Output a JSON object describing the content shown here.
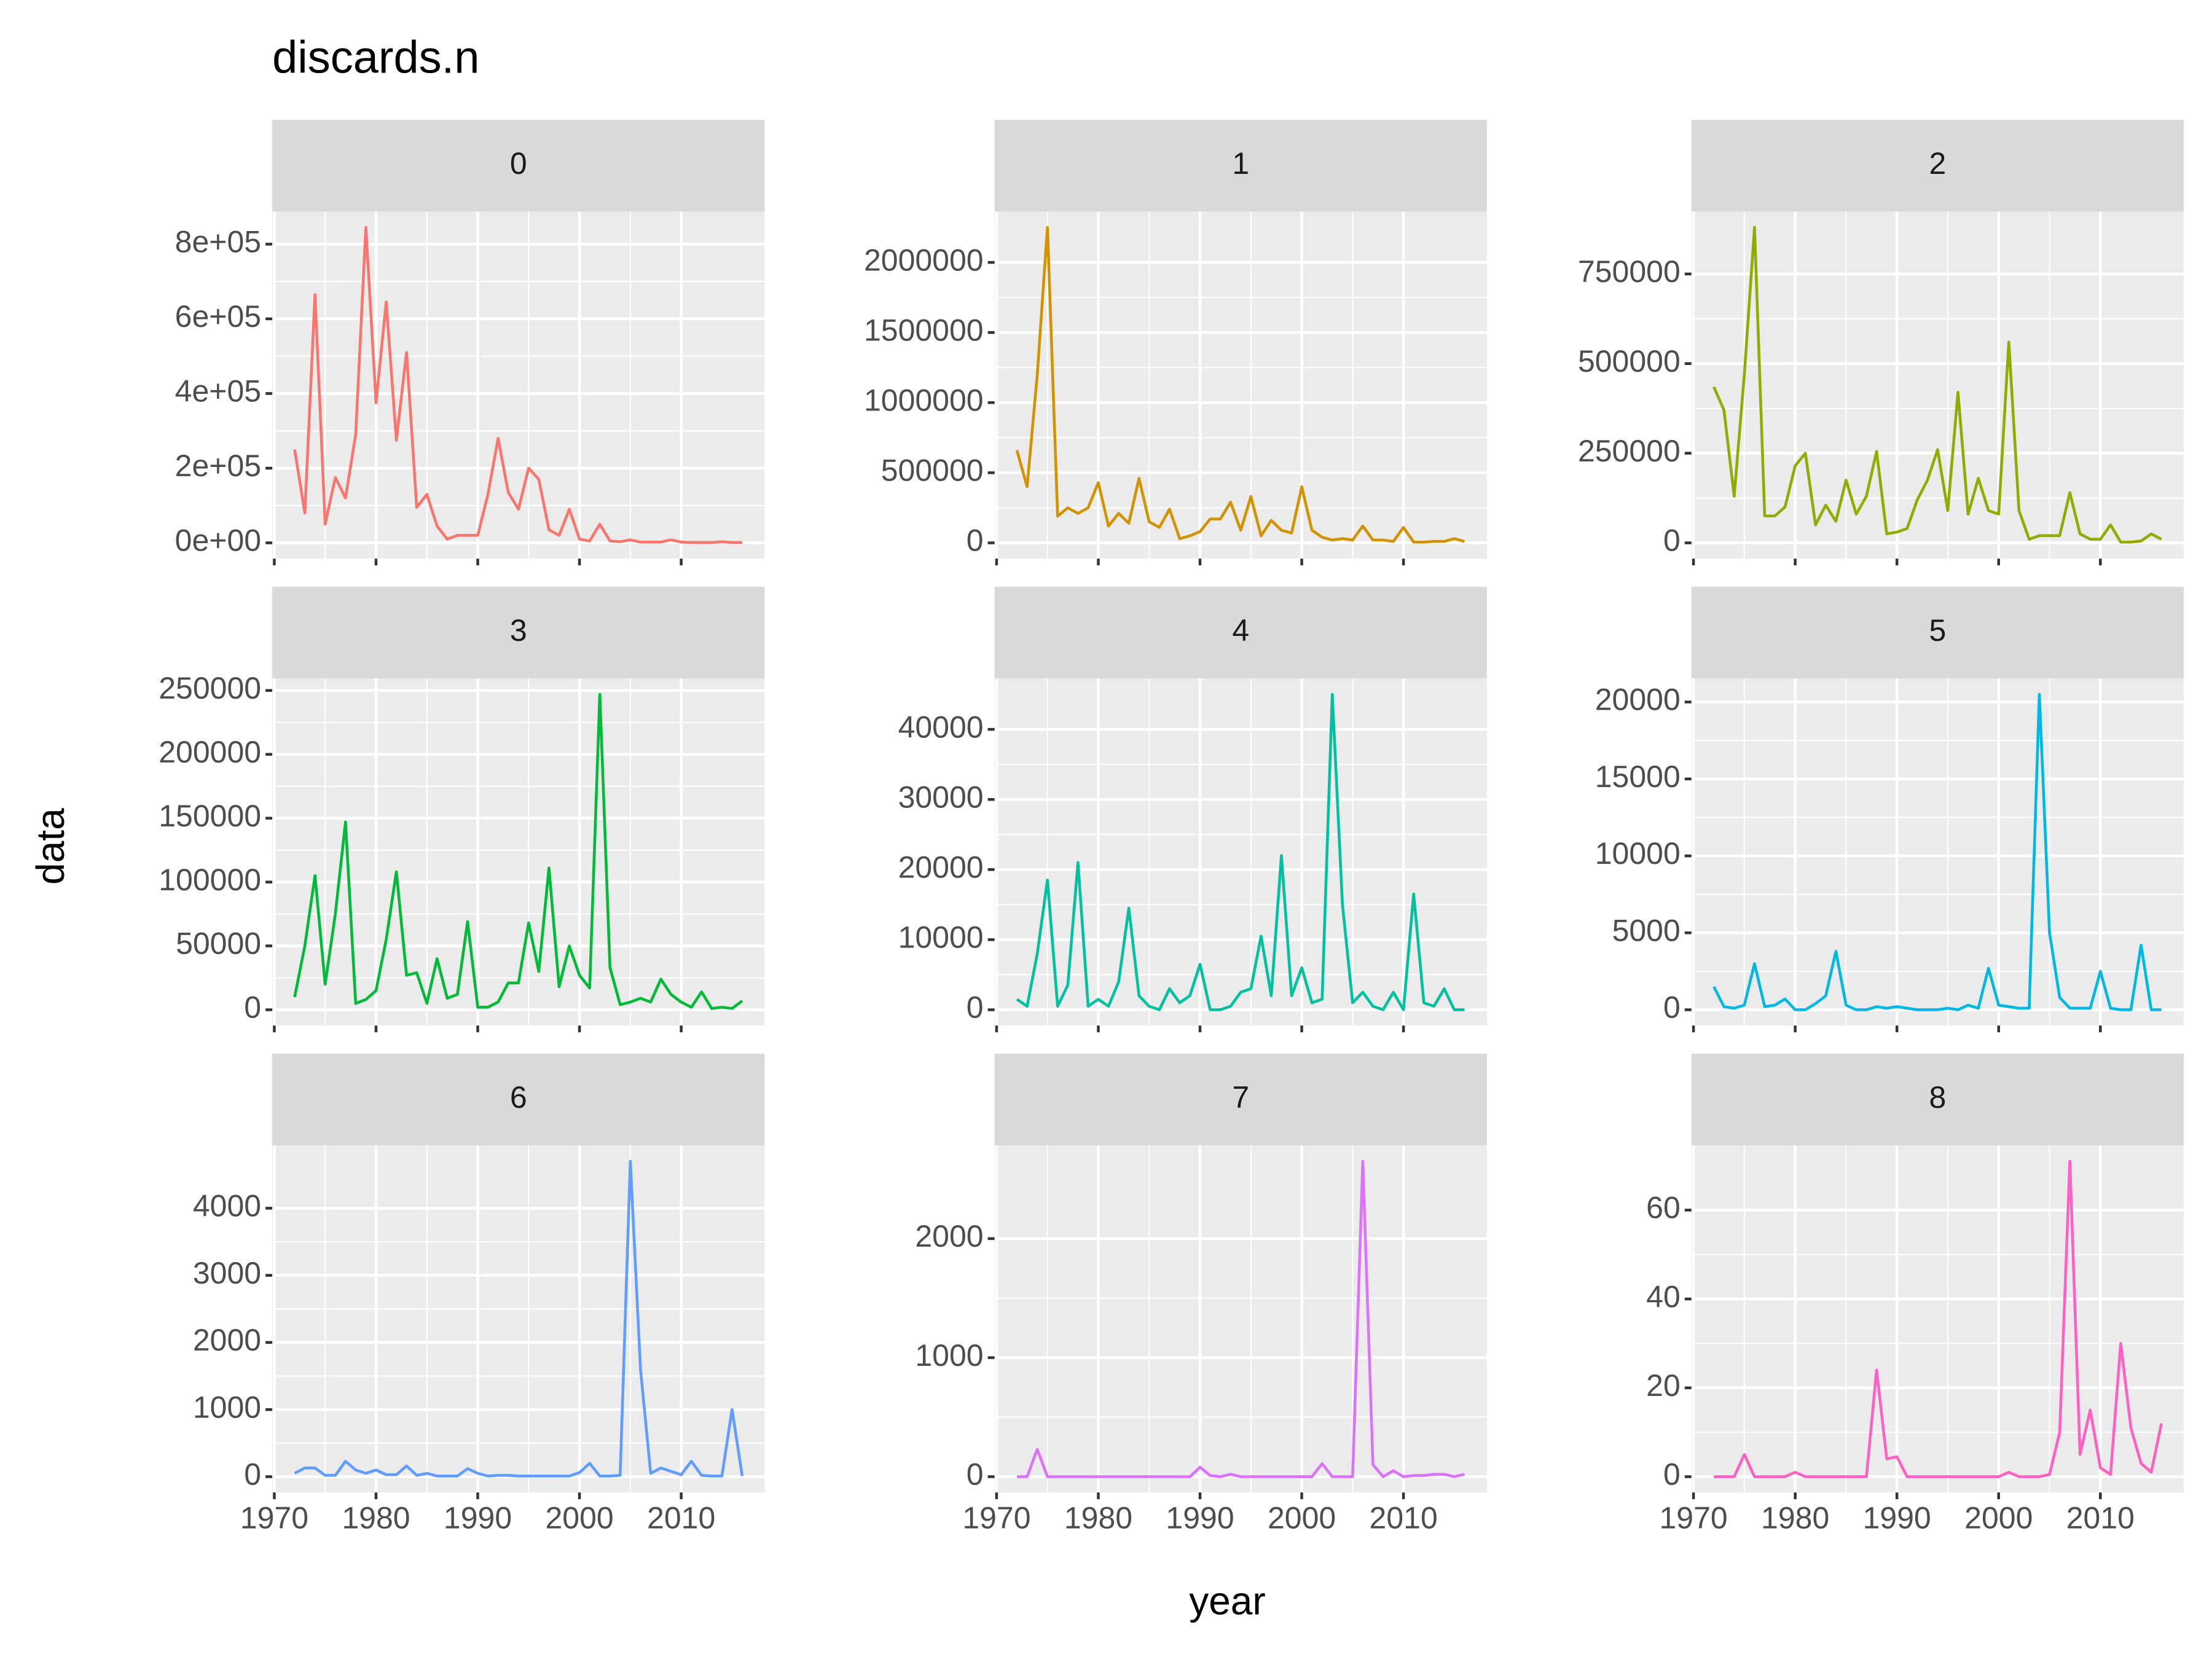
{
  "chart_data": {
    "type": "line",
    "title": "discards.n",
    "xlabel": "year",
    "ylabel": "data",
    "x": [
      1972,
      1973,
      1974,
      1975,
      1976,
      1977,
      1978,
      1979,
      1980,
      1981,
      1982,
      1983,
      1984,
      1985,
      1986,
      1987,
      1988,
      1989,
      1990,
      1991,
      1992,
      1993,
      1994,
      1995,
      1996,
      1997,
      1998,
      1999,
      2000,
      2001,
      2002,
      2003,
      2004,
      2005,
      2006,
      2007,
      2008,
      2009,
      2010,
      2011,
      2012,
      2013,
      2014,
      2015,
      2016
    ],
    "xlim": [
      1969.8,
      2018.2
    ],
    "xticks": [
      1970,
      1980,
      1990,
      2000,
      2010
    ],
    "grid": true,
    "series": [
      {
        "name": "0",
        "color": "#F8766D",
        "ylim": [
          -42250,
          887250
        ],
        "yticks": [
          {
            "value": 0,
            "label": "0e+00"
          },
          {
            "value": 200000,
            "label": "2e+05"
          },
          {
            "value": 400000,
            "label": "4e+05"
          },
          {
            "value": 600000,
            "label": "6e+05"
          },
          {
            "value": 800000,
            "label": "8e+05"
          }
        ],
        "values": [
          250000,
          80000,
          665000,
          50000,
          175000,
          120000,
          290000,
          845000,
          375000,
          645000,
          275000,
          510000,
          95000,
          130000,
          45000,
          10000,
          20000,
          20000,
          20000,
          130000,
          280000,
          135000,
          90000,
          200000,
          170000,
          35000,
          20000,
          90000,
          10000,
          5000,
          50000,
          5000,
          3000,
          8000,
          2000,
          2000,
          2000,
          8000,
          2000,
          1000,
          1000,
          1000,
          3000,
          1000,
          1000
        ]
      },
      {
        "name": "1",
        "color": "#D39200",
        "ylim": [
          -112500,
          2362500
        ],
        "yticks": [
          0,
          500000,
          1000000,
          1500000,
          2000000
        ],
        "values": [
          660000,
          400000,
          1200000,
          2250000,
          190000,
          250000,
          210000,
          250000,
          430000,
          120000,
          210000,
          140000,
          460000,
          150000,
          110000,
          240000,
          30000,
          50000,
          80000,
          170000,
          170000,
          290000,
          90000,
          330000,
          50000,
          160000,
          90000,
          70000,
          400000,
          90000,
          40000,
          20000,
          30000,
          20000,
          120000,
          20000,
          20000,
          10000,
          110000,
          5000,
          5000,
          10000,
          10000,
          30000,
          10000
        ]
      },
      {
        "name": "2",
        "color": "#93AA00",
        "ylim": [
          -44000,
          924000
        ],
        "yticks": [
          0,
          250000,
          500000,
          750000
        ],
        "values": [
          435000,
          370000,
          130000,
          470000,
          880000,
          75000,
          75000,
          100000,
          215000,
          250000,
          50000,
          105000,
          60000,
          175000,
          80000,
          130000,
          255000,
          25000,
          30000,
          40000,
          120000,
          175000,
          260000,
          90000,
          420000,
          80000,
          180000,
          90000,
          80000,
          560000,
          90000,
          10000,
          20000,
          20000,
          20000,
          140000,
          25000,
          10000,
          10000,
          50000,
          2000,
          2000,
          5000,
          25000,
          10000
        ]
      },
      {
        "name": "3",
        "color": "#00BA38",
        "ylim": [
          -12350,
          259350
        ],
        "yticks": [
          0,
          50000,
          100000,
          150000,
          200000,
          250000
        ],
        "values": [
          10000,
          50000,
          105000,
          20000,
          75000,
          147000,
          5000,
          8000,
          15000,
          55000,
          108000,
          27000,
          29000,
          5000,
          40000,
          9000,
          12000,
          69000,
          2000,
          2000,
          6000,
          21000,
          21000,
          68000,
          30000,
          111000,
          18000,
          50000,
          27000,
          17000,
          247000,
          33000,
          4000,
          6000,
          9000,
          6000,
          24000,
          12000,
          6000,
          2000,
          14000,
          1000,
          2000,
          1000,
          7000
        ]
      },
      {
        "name": "4",
        "color": "#00C19F",
        "ylim": [
          -2250,
          47250
        ],
        "yticks": [
          0,
          10000,
          20000,
          30000,
          40000
        ],
        "values": [
          1500,
          500,
          8000,
          18500,
          500,
          3500,
          21000,
          500,
          1500,
          500,
          4000,
          14500,
          2000,
          500,
          0,
          3000,
          1000,
          2000,
          6500,
          0,
          0,
          500,
          2500,
          3000,
          10500,
          2000,
          22000,
          2000,
          6000,
          1000,
          1500,
          45000,
          15000,
          1000,
          2500,
          500,
          0,
          2500,
          0,
          16500,
          1000,
          500,
          3000,
          0,
          0
        ]
      },
      {
        "name": "5",
        "color": "#00B9E3",
        "ylim": [
          -1025,
          21525
        ],
        "yticks": [
          0,
          5000,
          10000,
          15000,
          20000
        ],
        "values": [
          1500,
          200,
          100,
          300,
          3000,
          200,
          300,
          700,
          0,
          0,
          400,
          900,
          3800,
          300,
          0,
          0,
          200,
          100,
          200,
          100,
          0,
          0,
          0,
          100,
          0,
          300,
          100,
          2700,
          300,
          200,
          100,
          100,
          20500,
          5000,
          800,
          100,
          100,
          100,
          2500,
          100,
          0,
          0,
          4200,
          0,
          0
        ]
      },
      {
        "name": "6",
        "color": "#619CFF",
        "ylim": [
          -235,
          4935
        ],
        "yticks": [
          0,
          1000,
          2000,
          3000,
          4000
        ],
        "values": [
          50,
          130,
          130,
          20,
          20,
          230,
          100,
          50,
          100,
          30,
          30,
          160,
          20,
          50,
          10,
          10,
          10,
          120,
          50,
          10,
          20,
          20,
          10,
          10,
          10,
          10,
          10,
          10,
          60,
          200,
          10,
          10,
          20,
          4700,
          1600,
          50,
          130,
          80,
          30,
          230,
          20,
          10,
          10,
          1000,
          10
        ]
      },
      {
        "name": "7",
        "color": "#DB72FB",
        "ylim": [
          -132.5,
          2782.5
        ],
        "yticks": [
          0,
          1000,
          2000
        ],
        "values": [
          0,
          0,
          230,
          0,
          0,
          0,
          0,
          0,
          0,
          0,
          0,
          0,
          0,
          0,
          0,
          0,
          0,
          0,
          80,
          10,
          0,
          20,
          0,
          0,
          0,
          0,
          0,
          0,
          0,
          0,
          110,
          0,
          0,
          0,
          2650,
          100,
          0,
          50,
          0,
          10,
          10,
          20,
          20,
          0,
          20
        ]
      },
      {
        "name": "8",
        "color": "#FF61C3",
        "ylim": [
          -3.55,
          74.55
        ],
        "yticks": [
          0,
          20,
          40,
          60
        ],
        "values": [
          0,
          0,
          0,
          5,
          0,
          0,
          0,
          0,
          1,
          0,
          0,
          0,
          0,
          0,
          0,
          0,
          24,
          4,
          4.5,
          0,
          0,
          0,
          0,
          0,
          0,
          0,
          0,
          0,
          0,
          1,
          0,
          0,
          0,
          0.5,
          10,
          71,
          5,
          15,
          2,
          0.5,
          30,
          11,
          3,
          1,
          12
        ]
      }
    ]
  }
}
